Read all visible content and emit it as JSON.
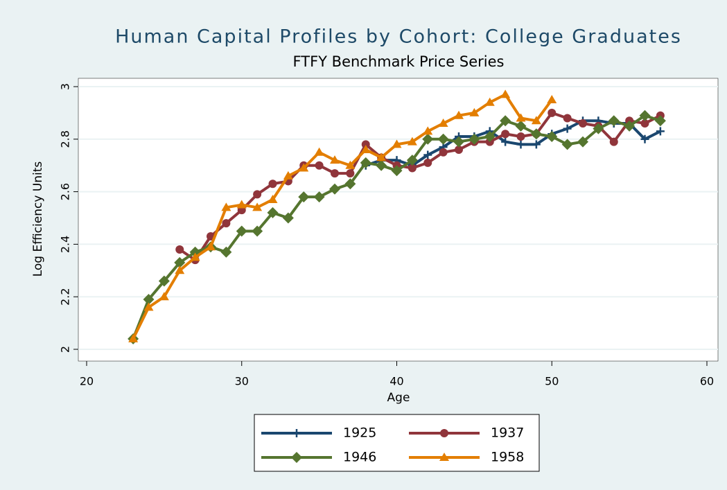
{
  "chart_data": {
    "type": "line",
    "title": "Human Capital Profiles by Cohort: College Graduates",
    "subtitle": "FTFY Benchmark Price Series",
    "xlabel": "Age",
    "ylabel": "Log Efficiency Units",
    "x": [
      23,
      24,
      25,
      26,
      27,
      28,
      29,
      30,
      31,
      32,
      33,
      34,
      35,
      36,
      37,
      38,
      39,
      40,
      41,
      42,
      43,
      44,
      45,
      46,
      47,
      48,
      49,
      50,
      51,
      52,
      53,
      54,
      55,
      56,
      57
    ],
    "series": [
      {
        "name": "1925",
        "color": "#1a476f",
        "marker": "plus",
        "values": [
          null,
          null,
          null,
          null,
          null,
          null,
          null,
          null,
          null,
          null,
          null,
          null,
          null,
          null,
          null,
          2.7,
          2.72,
          2.72,
          2.7,
          2.74,
          2.77,
          2.81,
          2.81,
          2.83,
          2.79,
          2.78,
          2.78,
          2.82,
          2.84,
          2.87,
          2.87,
          2.86,
          2.86,
          2.8,
          2.83
        ]
      },
      {
        "name": "1937",
        "color": "#90353b",
        "marker": "circle",
        "values": [
          null,
          null,
          null,
          2.38,
          2.34,
          2.43,
          2.48,
          2.53,
          2.59,
          2.63,
          2.64,
          2.7,
          2.7,
          2.67,
          2.67,
          2.78,
          2.73,
          2.7,
          2.69,
          2.71,
          2.75,
          2.76,
          2.79,
          2.79,
          2.82,
          2.81,
          2.82,
          2.9,
          2.88,
          2.86,
          2.85,
          2.79,
          2.87,
          2.86,
          2.89
        ]
      },
      {
        "name": "1946",
        "color": "#55752f",
        "marker": "diamond",
        "values": [
          2.04,
          2.19,
          2.26,
          2.33,
          2.37,
          2.39,
          2.37,
          2.45,
          2.45,
          2.52,
          2.5,
          2.58,
          2.58,
          2.61,
          2.63,
          2.71,
          2.7,
          2.68,
          2.72,
          2.8,
          2.8,
          2.79,
          2.8,
          2.81,
          2.87,
          2.85,
          2.82,
          2.81,
          2.78,
          2.79,
          2.84,
          2.87,
          2.85,
          2.89,
          2.87
        ]
      },
      {
        "name": "1958",
        "color": "#e37e00",
        "marker": "triangle",
        "values": [
          2.04,
          2.16,
          2.2,
          2.3,
          2.35,
          2.39,
          2.54,
          2.55,
          2.54,
          2.57,
          2.66,
          2.69,
          2.75,
          2.72,
          2.7,
          2.76,
          2.73,
          2.78,
          2.79,
          2.83,
          2.86,
          2.89,
          2.9,
          2.94,
          2.97,
          2.88,
          2.87,
          2.95,
          null,
          null,
          null,
          null,
          null,
          null,
          null
        ]
      }
    ],
    "xlim": [
      20,
      60
    ],
    "xticks": [
      20,
      30,
      40,
      50,
      60
    ],
    "ylim": [
      2,
      3
    ],
    "yticks": [
      2,
      2.2,
      2.4,
      2.6,
      2.8,
      3
    ],
    "grid": true,
    "legend": "bottom"
  }
}
